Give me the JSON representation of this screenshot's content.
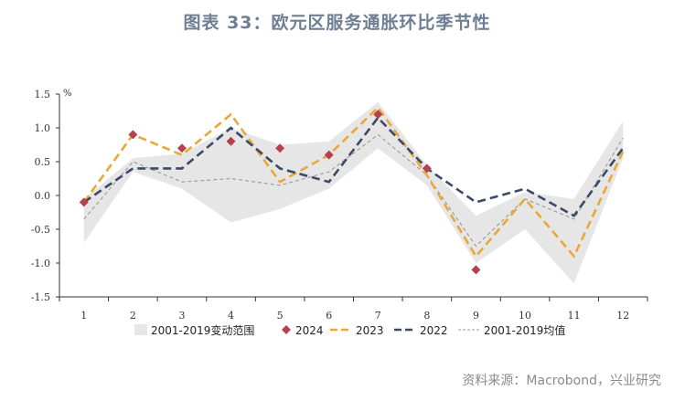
{
  "title": "图表 33：欧元区服务通胀环比季节性",
  "source": "资料来源：Macrobond，兴业研究",
  "chart_data": {
    "type": "line",
    "unit_label": "%",
    "x": [
      "1",
      "2",
      "3",
      "4",
      "5",
      "6",
      "7",
      "8",
      "9",
      "10",
      "11",
      "12"
    ],
    "ylim": [
      -1.5,
      1.5
    ],
    "yticks": [
      "1.5",
      "1.0",
      "0.5",
      "0.0",
      "-0.5",
      "-1.0",
      "-1.5"
    ],
    "ytick_values": [
      1.5,
      1.0,
      0.5,
      0.0,
      -0.5,
      -1.0,
      -1.5
    ],
    "range_band": {
      "name": "2001-2019变动范围",
      "color": "#e6e6e6",
      "upper": [
        -0.05,
        0.55,
        0.62,
        1.0,
        0.75,
        0.8,
        1.38,
        0.45,
        -0.3,
        0.05,
        -0.05,
        1.1
      ],
      "lower": [
        -0.7,
        0.35,
        0.1,
        -0.4,
        -0.2,
        0.1,
        0.7,
        0.15,
        -1.0,
        -0.5,
        -1.3,
        0.55
      ]
    },
    "series": [
      {
        "name": "2024",
        "color": "#b5404e",
        "style": "diamond",
        "values": [
          -0.1,
          0.9,
          0.7,
          0.8,
          0.7,
          0.6,
          1.2,
          0.4,
          -1.1,
          null,
          null,
          null
        ]
      },
      {
        "name": "2023",
        "color": "#e8a83a",
        "style": "dash",
        "values": [
          -0.1,
          0.9,
          0.6,
          1.2,
          0.2,
          0.6,
          1.3,
          0.3,
          -0.9,
          -0.05,
          -0.9,
          0.65
        ]
      },
      {
        "name": "2022",
        "color": "#3b4a66",
        "style": "dash",
        "values": [
          -0.1,
          0.4,
          0.4,
          1.0,
          0.4,
          0.2,
          1.15,
          0.4,
          -0.1,
          0.1,
          -0.3,
          0.7
        ]
      },
      {
        "name": "2001-2019均值",
        "color": "#9a9a9a",
        "style": "thin-dash",
        "values": [
          -0.35,
          0.5,
          0.2,
          0.25,
          0.15,
          0.35,
          0.9,
          0.3,
          -0.75,
          -0.05,
          -0.35,
          0.85
        ]
      }
    ]
  }
}
